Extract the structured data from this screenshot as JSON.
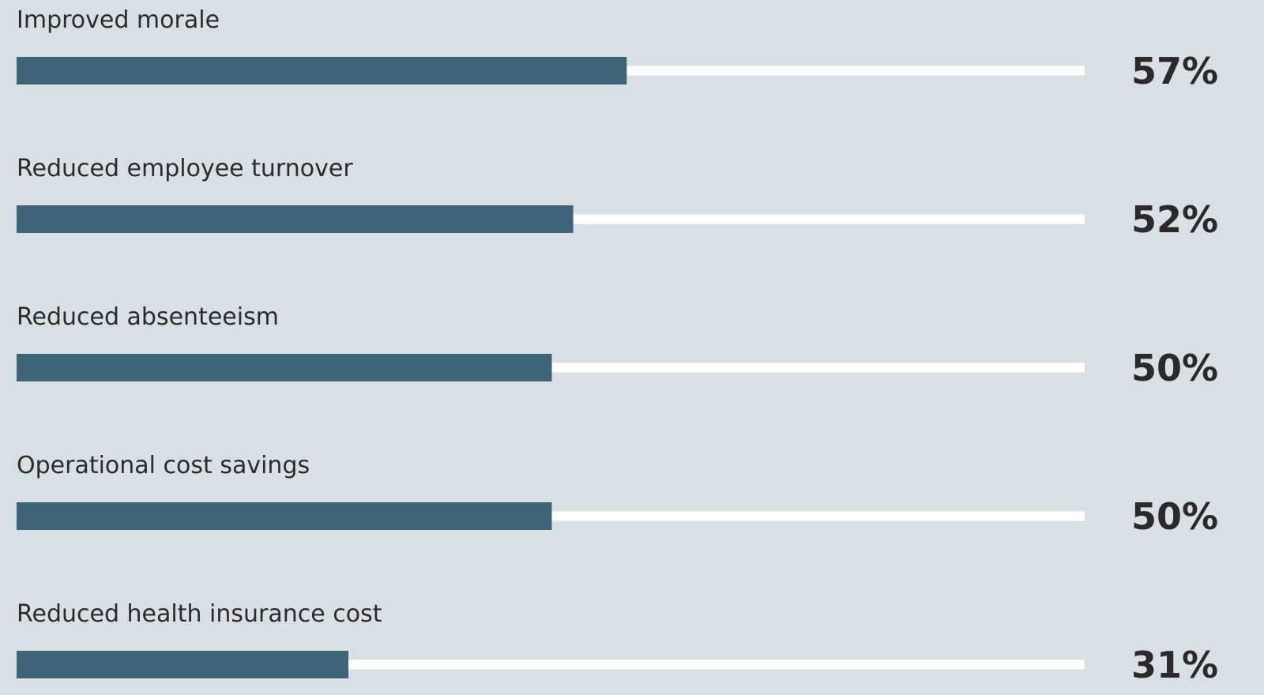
{
  "colors": {
    "background": "#d9e0e4",
    "bar_fill": "#3d6477",
    "track": "#ffffff",
    "label_text": "#2b2b2b",
    "value_text": "#2a2a2a"
  },
  "chart_data": {
    "type": "bar",
    "orientation": "horizontal",
    "categories": [
      "Improved morale",
      "Reduced employee turnover",
      "Reduced absenteeism",
      "Operational cost savings",
      "Reduced health insurance cost"
    ],
    "values": [
      57,
      52,
      50,
      50,
      31
    ],
    "value_labels": [
      "57%",
      "52%",
      "50%",
      "50%",
      "31%"
    ],
    "xlim": [
      0,
      100
    ],
    "unit": "%",
    "grid": false,
    "legend": "none"
  }
}
